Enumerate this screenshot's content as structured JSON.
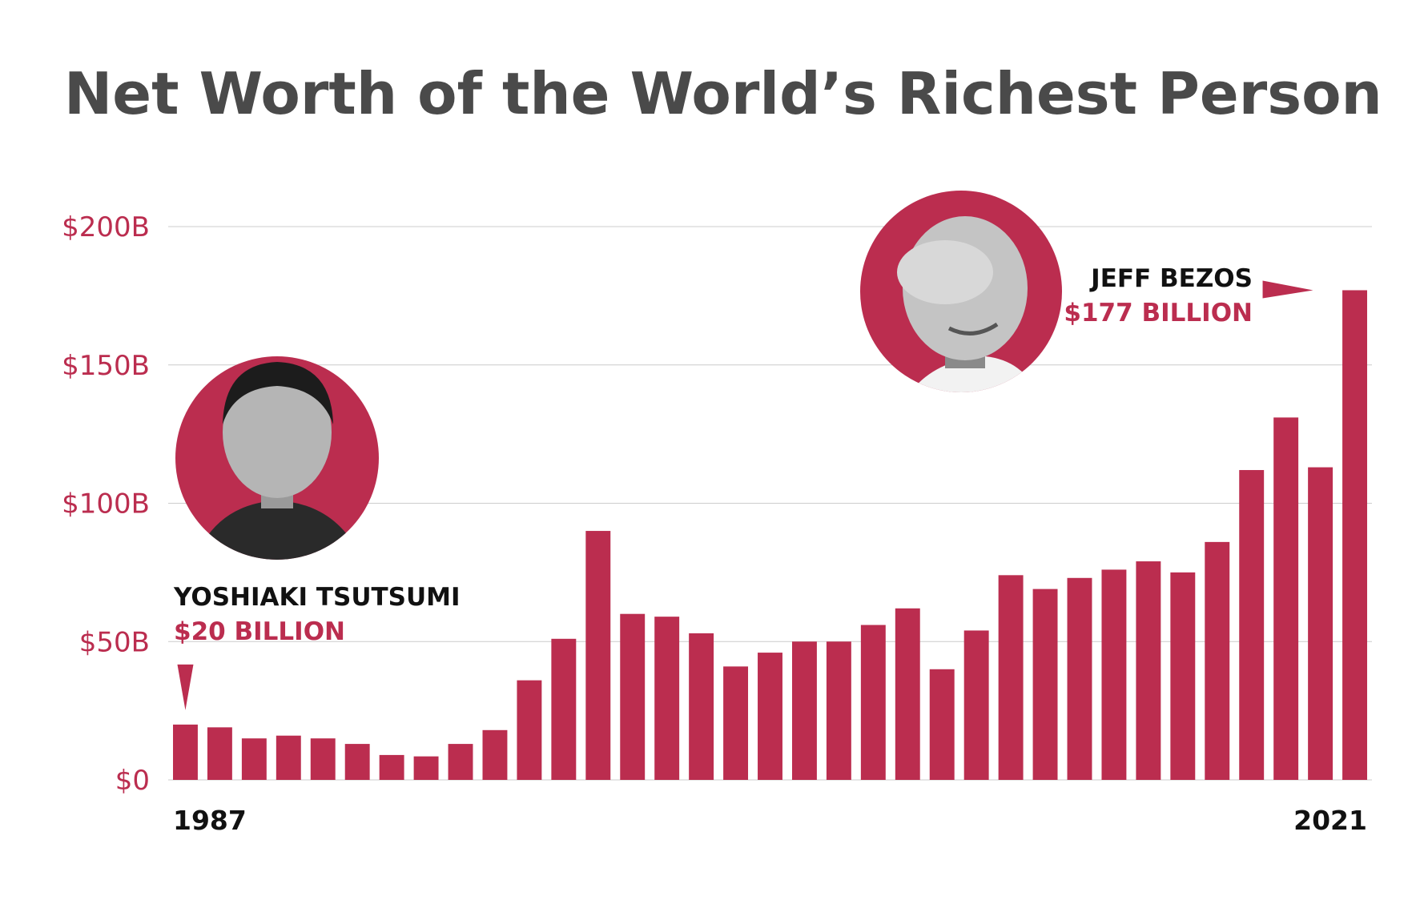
{
  "chart_data": {
    "type": "bar",
    "title": "Net Worth of the World’s Richest Person",
    "categories": [
      "1987",
      null,
      null,
      null,
      null,
      null,
      null,
      null,
      null,
      null,
      null,
      null,
      null,
      null,
      null,
      null,
      null,
      null,
      null,
      null,
      null,
      null,
      null,
      null,
      null,
      null,
      null,
      null,
      null,
      null,
      null,
      null,
      null,
      null,
      "2021"
    ],
    "values": [
      20,
      19,
      15,
      16,
      15,
      13,
      9,
      8.5,
      13,
      18,
      36,
      51,
      90,
      60,
      59,
      53,
      41,
      46,
      50,
      50,
      56,
      62,
      40,
      54,
      74,
      69,
      73,
      76,
      79,
      75,
      86,
      112,
      131,
      113,
      177
    ],
    "color": "#bb2d4f",
    "ylim": [
      0,
      200
    ],
    "yticks": [
      {
        "value": 0,
        "label": "$0"
      },
      {
        "value": 50,
        "label": "$50B"
      },
      {
        "value": 100,
        "label": "$100B"
      },
      {
        "value": 150,
        "label": "$150B"
      },
      {
        "value": 200,
        "label": "$200B"
      }
    ],
    "grid": true,
    "annotations": [
      {
        "name": "YOSHIAKI TSUTSUMI",
        "value": 20,
        "label": "$20 BILLION"
      },
      {
        "name": "JEFF BEZOS",
        "value": 177,
        "label": "$177 BILLION"
      }
    ]
  }
}
